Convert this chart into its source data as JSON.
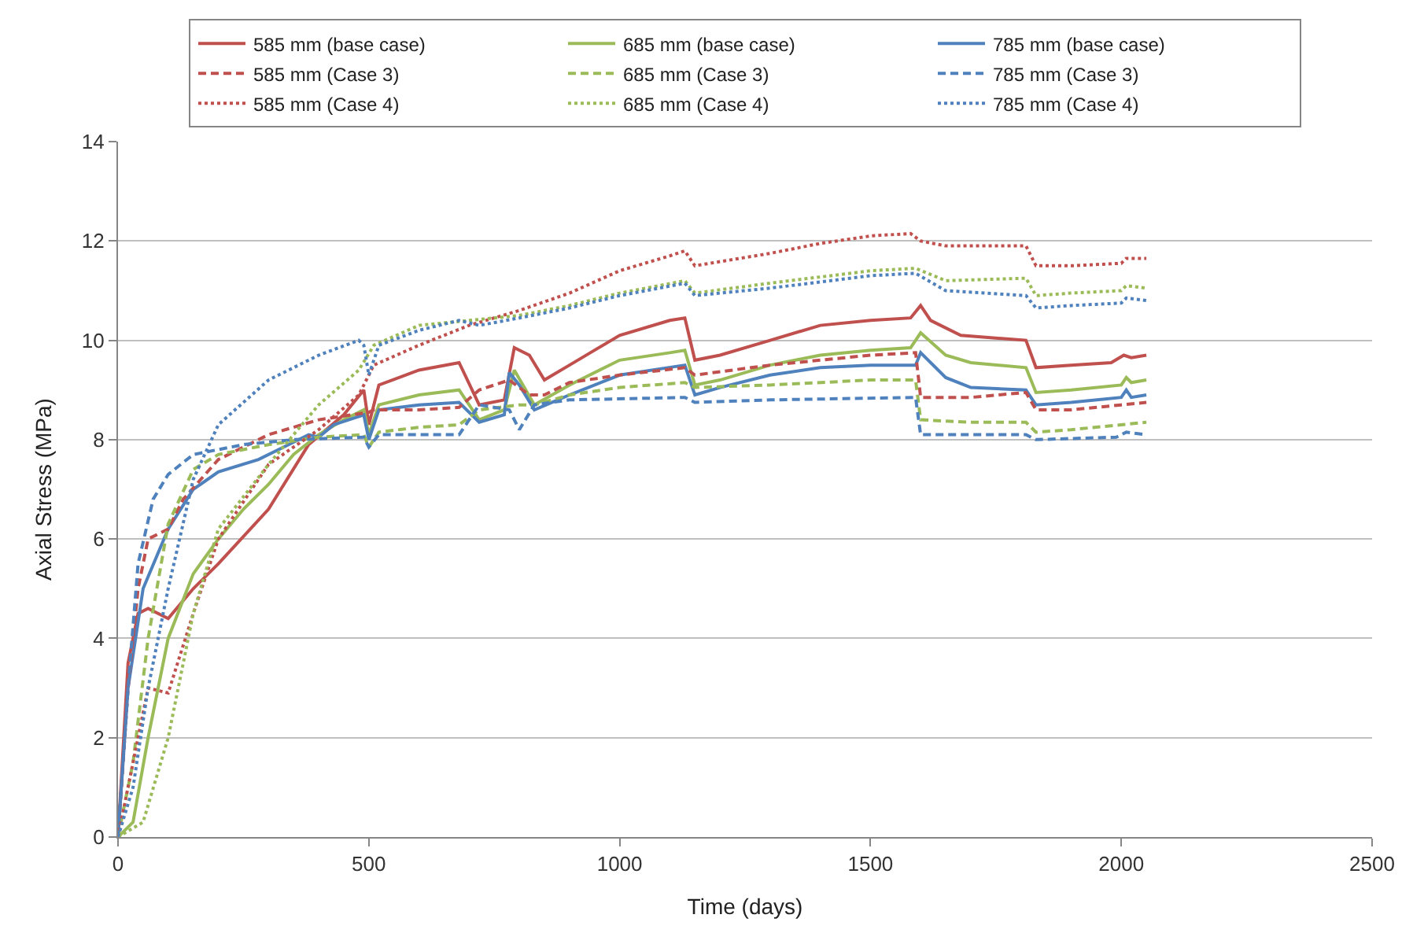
{
  "chart_data": {
    "type": "line",
    "xlabel": "Time (days)",
    "ylabel": "Axial Stress (MPa)",
    "xlim": [
      0,
      2500
    ],
    "xticks": [
      0,
      500,
      1000,
      1500,
      2000,
      2500
    ],
    "ylim": [
      0,
      14
    ],
    "yticks": [
      0,
      2,
      4,
      6,
      8,
      10,
      12,
      14
    ],
    "grid": "y",
    "legend": "top",
    "marker": "none",
    "series": [
      {
        "name": "585 mm (base case)",
        "color": "#c0504d",
        "line_style": "solid",
        "x": [
          0,
          20,
          40,
          60,
          100,
          150,
          200,
          300,
          380,
          450,
          490,
          500,
          520,
          600,
          680,
          720,
          770,
          790,
          820,
          850,
          900,
          1000,
          1100,
          1130,
          1150,
          1200,
          1300,
          1400,
          1500,
          1580,
          1600,
          1620,
          1680,
          1810,
          1830,
          1900,
          1980,
          2005,
          2020,
          2050
        ],
        "values": [
          0,
          3.5,
          4.5,
          4.6,
          4.4,
          5.0,
          5.5,
          6.6,
          7.9,
          8.5,
          9.0,
          8.3,
          9.1,
          9.4,
          9.55,
          8.7,
          8.8,
          9.85,
          9.7,
          9.2,
          9.5,
          10.1,
          10.4,
          10.45,
          9.6,
          9.7,
          10.0,
          10.3,
          10.4,
          10.45,
          10.7,
          10.4,
          10.1,
          10.0,
          9.45,
          9.5,
          9.55,
          9.7,
          9.65,
          9.7
        ]
      },
      {
        "name": "685 mm (base case)",
        "color": "#9bbb59",
        "line_style": "solid",
        "x": [
          0,
          30,
          60,
          100,
          150,
          200,
          250,
          300,
          350,
          400,
          450,
          490,
          500,
          520,
          600,
          680,
          720,
          770,
          790,
          830,
          900,
          1000,
          1100,
          1130,
          1150,
          1200,
          1300,
          1400,
          1500,
          1580,
          1600,
          1650,
          1700,
          1810,
          1830,
          1900,
          2000,
          2010,
          2020,
          2050
        ],
        "values": [
          0,
          0.3,
          2,
          4,
          5.3,
          6.0,
          6.6,
          7.1,
          7.7,
          8.1,
          8.4,
          8.6,
          8.1,
          8.7,
          8.9,
          9.0,
          8.4,
          8.6,
          9.4,
          8.7,
          9.1,
          9.6,
          9.75,
          9.8,
          9.1,
          9.2,
          9.5,
          9.7,
          9.8,
          9.85,
          10.15,
          9.7,
          9.55,
          9.45,
          8.95,
          9.0,
          9.1,
          9.25,
          9.15,
          9.2
        ]
      },
      {
        "name": "785 mm (base case)",
        "color": "#4f81bd",
        "line_style": "solid",
        "x": [
          0,
          20,
          50,
          100,
          150,
          200,
          280,
          340,
          380,
          400,
          430,
          490,
          500,
          520,
          600,
          680,
          720,
          770,
          780,
          800,
          830,
          900,
          1000,
          1130,
          1150,
          1200,
          1300,
          1400,
          1500,
          1590,
          1600,
          1650,
          1700,
          1810,
          1830,
          1900,
          2000,
          2010,
          2020,
          2050
        ],
        "values": [
          0,
          3,
          5.0,
          6.2,
          7.0,
          7.35,
          7.6,
          7.9,
          8.1,
          8.05,
          8.3,
          8.5,
          8.0,
          8.6,
          8.7,
          8.75,
          8.35,
          8.5,
          9.35,
          9.1,
          8.6,
          8.9,
          9.3,
          9.5,
          8.9,
          9.05,
          9.3,
          9.45,
          9.5,
          9.5,
          9.75,
          9.25,
          9.05,
          9.0,
          8.7,
          8.75,
          8.85,
          9.0,
          8.85,
          8.9
        ]
      },
      {
        "name": "585 mm (Case 3)",
        "color": "#c0504d",
        "line_style": "dashed",
        "x": [
          0,
          20,
          40,
          60,
          100,
          130,
          200,
          300,
          400,
          500,
          510,
          600,
          680,
          720,
          780,
          820,
          850,
          900,
          1000,
          1130,
          1150,
          1300,
          1500,
          1590,
          1600,
          1700,
          1810,
          1830,
          1900,
          2000,
          2050
        ],
        "values": [
          0,
          3,
          5,
          6.0,
          6.2,
          6.8,
          7.6,
          8.1,
          8.4,
          8.55,
          8.6,
          8.6,
          8.65,
          9.0,
          9.2,
          8.9,
          8.9,
          9.15,
          9.3,
          9.45,
          9.3,
          9.5,
          9.7,
          9.75,
          8.85,
          8.85,
          8.95,
          8.6,
          8.6,
          8.7,
          8.75
        ]
      },
      {
        "name": "685 mm (Case 3)",
        "color": "#9bbb59",
        "line_style": "dashed",
        "x": [
          0,
          30,
          60,
          100,
          150,
          200,
          300,
          400,
          490,
          500,
          520,
          600,
          680,
          720,
          800,
          830,
          900,
          1000,
          1130,
          1150,
          1300,
          1500,
          1590,
          1600,
          1700,
          1810,
          1830,
          1900,
          2000,
          2050
        ],
        "values": [
          0,
          1.5,
          4,
          6.3,
          7.4,
          7.7,
          7.9,
          8.05,
          8.1,
          7.85,
          8.15,
          8.25,
          8.3,
          8.6,
          8.7,
          8.7,
          8.9,
          9.05,
          9.15,
          9.05,
          9.1,
          9.2,
          9.2,
          8.4,
          8.35,
          8.35,
          8.15,
          8.2,
          8.3,
          8.35
        ]
      },
      {
        "name": "785 mm (Case 3)",
        "color": "#4f81bd",
        "line_style": "dashed",
        "x": [
          0,
          20,
          40,
          70,
          100,
          150,
          250,
          350,
          490,
          500,
          520,
          680,
          720,
          780,
          800,
          830,
          900,
          1130,
          1150,
          1300,
          1590,
          1600,
          1700,
          1810,
          1830,
          1990,
          2010,
          2050
        ],
        "values": [
          0,
          3,
          5.5,
          6.8,
          7.3,
          7.7,
          7.9,
          8.0,
          8.05,
          7.85,
          8.1,
          8.1,
          8.7,
          8.6,
          8.2,
          8.7,
          8.8,
          8.85,
          8.75,
          8.8,
          8.85,
          8.1,
          8.1,
          8.1,
          8.0,
          8.05,
          8.15,
          8.1
        ]
      },
      {
        "name": "585 mm (Case 4)",
        "color": "#c0504d",
        "line_style": "dotted",
        "x": [
          0,
          30,
          60,
          100,
          150,
          200,
          300,
          400,
          480,
          510,
          600,
          700,
          800,
          900,
          1000,
          1100,
          1130,
          1150,
          1300,
          1400,
          1500,
          1580,
          1600,
          1650,
          1810,
          1830,
          1900,
          2000,
          2010,
          2050
        ],
        "values": [
          0,
          1.5,
          3.0,
          2.9,
          4.5,
          6.0,
          7.5,
          8.2,
          8.9,
          9.5,
          9.9,
          10.3,
          10.6,
          10.95,
          11.4,
          11.7,
          11.8,
          11.5,
          11.75,
          11.95,
          12.1,
          12.15,
          12.0,
          11.9,
          11.9,
          11.5,
          11.5,
          11.55,
          11.65,
          11.65
        ]
      },
      {
        "name": "685 mm (Case 4)",
        "color": "#9bbb59",
        "line_style": "dotted",
        "x": [
          0,
          50,
          100,
          150,
          200,
          300,
          400,
          480,
          510,
          600,
          700,
          800,
          900,
          1000,
          1130,
          1150,
          1300,
          1500,
          1590,
          1650,
          1810,
          1830,
          1900,
          2000,
          2010,
          2050
        ],
        "values": [
          0,
          0.3,
          2,
          4.5,
          6.2,
          7.5,
          8.7,
          9.4,
          9.9,
          10.3,
          10.4,
          10.5,
          10.7,
          10.95,
          11.2,
          10.95,
          11.15,
          11.4,
          11.45,
          11.2,
          11.25,
          10.9,
          10.95,
          11.0,
          11.1,
          11.05
        ]
      },
      {
        "name": "785 mm (Case 4)",
        "color": "#4f81bd",
        "line_style": "dotted",
        "x": [
          0,
          30,
          60,
          100,
          150,
          200,
          300,
          400,
          480,
          490,
          500,
          520,
          600,
          680,
          720,
          800,
          900,
          1000,
          1130,
          1150,
          1300,
          1500,
          1590,
          1650,
          1810,
          1830,
          1900,
          2000,
          2010,
          2050
        ],
        "values": [
          0,
          1,
          3,
          5,
          7.2,
          8.3,
          9.2,
          9.7,
          10.0,
          9.9,
          9.3,
          9.9,
          10.2,
          10.4,
          10.3,
          10.45,
          10.65,
          10.9,
          11.15,
          10.9,
          11.05,
          11.3,
          11.35,
          11.0,
          10.9,
          10.65,
          10.7,
          10.75,
          10.85,
          10.8
        ]
      }
    ]
  }
}
